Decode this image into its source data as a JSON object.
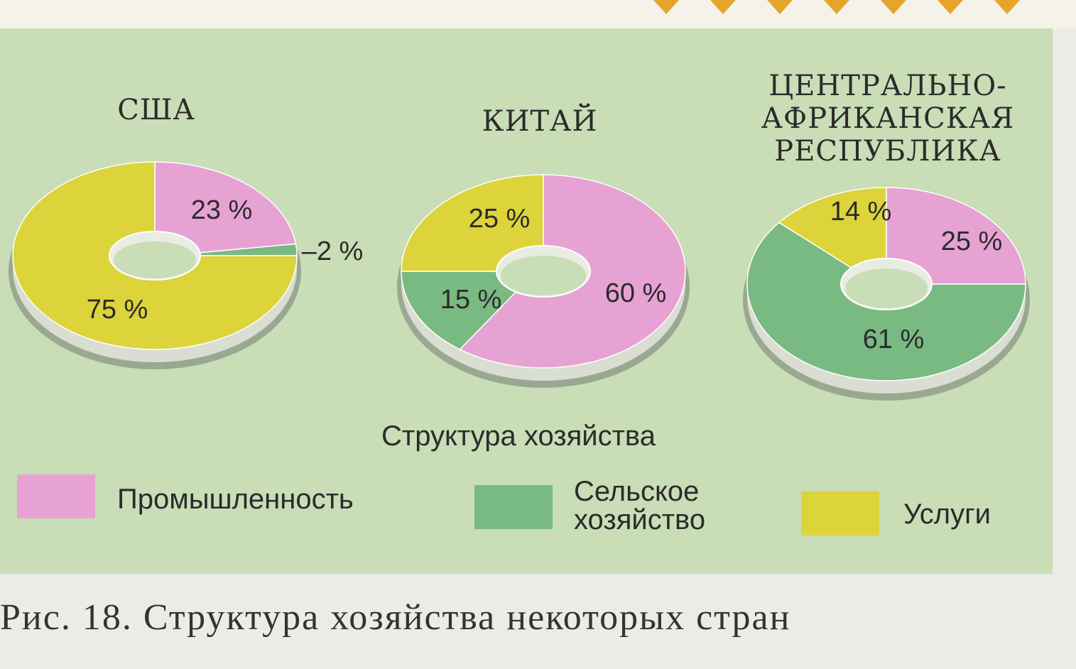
{
  "colors": {
    "industry": "#e7a2d4",
    "agriculture": "#79b982",
    "services": "#dcd43a",
    "panel_bg": "#c9ddb6",
    "accent_top": "#e6a52a"
  },
  "chart_data": [
    {
      "type": "pie",
      "title": "США",
      "categories": [
        "Промышленность",
        "Сельское хозяйство",
        "Услуги"
      ],
      "values": [
        23,
        2,
        75
      ],
      "labels": [
        "23 %",
        "2 %",
        "75 %"
      ]
    },
    {
      "type": "pie",
      "title": "КИТАЙ",
      "categories": [
        "Промышленность",
        "Сельское хозяйство",
        "Услуги"
      ],
      "values": [
        60,
        15,
        25
      ],
      "labels": [
        "60 %",
        "15 %",
        "25 %"
      ]
    },
    {
      "type": "pie",
      "title": "ЦЕНТРАЛЬНО-АФРИКАНСКАЯ РЕСПУБЛИКА",
      "title_lines": [
        "ЦЕНТРАЛЬНО-",
        "АФРИКАНСКАЯ",
        "РЕСПУБЛИКА"
      ],
      "categories": [
        "Промышленность",
        "Сельское хозяйство",
        "Услуги"
      ],
      "values": [
        25,
        61,
        14
      ],
      "labels": [
        "25 %",
        "61 %",
        "14 %"
      ]
    }
  ],
  "subtitle": "Структура хозяйства",
  "legend": {
    "industry": "Промышленность",
    "agriculture_line1": "Сельское",
    "agriculture_line2": "хозяйство",
    "services": "Услуги"
  },
  "caption": "Рис. 18. Структура хозяйства некоторых стран"
}
